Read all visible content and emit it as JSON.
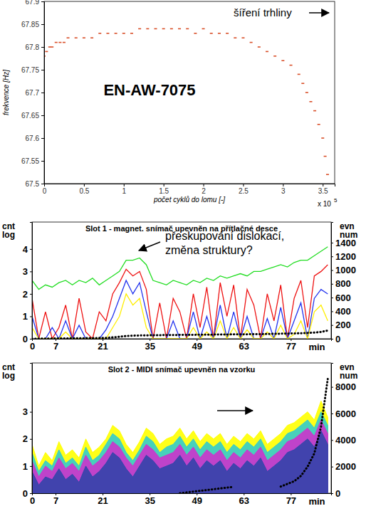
{
  "chart_data": [
    {
      "type": "scatter",
      "title": "EN-AW-7075",
      "annotation": "šíření trhliny",
      "x_label": "počet cyklů do lomu [-]",
      "y_label": "frekvence [Hz]",
      "x_multiplier": {
        "base": "x 10",
        "exponent": "5"
      },
      "x": [
        0,
        0.03,
        0.07,
        0.1,
        0.15,
        0.2,
        0.25,
        0.3,
        0.4,
        0.5,
        0.6,
        0.7,
        0.8,
        0.9,
        1.0,
        1.1,
        1.2,
        1.3,
        1.4,
        1.5,
        1.6,
        1.7,
        1.8,
        1.9,
        2.0,
        2.1,
        2.2,
        2.3,
        2.4,
        2.5,
        2.6,
        2.7,
        2.8,
        2.9,
        3.0,
        3.1,
        3.2,
        3.25,
        3.3,
        3.35,
        3.4,
        3.45,
        3.5,
        3.53,
        3.56
      ],
      "values": [
        67.78,
        67.79,
        67.8,
        67.8,
        67.81,
        67.81,
        67.81,
        67.82,
        67.82,
        67.82,
        67.82,
        67.83,
        67.83,
        67.83,
        67.83,
        67.83,
        67.84,
        67.84,
        67.84,
        67.84,
        67.84,
        67.84,
        67.84,
        67.83,
        67.84,
        67.83,
        67.83,
        67.83,
        67.82,
        67.82,
        67.81,
        67.8,
        67.79,
        67.78,
        67.77,
        67.76,
        67.74,
        67.72,
        67.7,
        67.68,
        67.66,
        67.63,
        67.6,
        67.56,
        67.52
      ],
      "color": "#d9502a",
      "marker": "dash",
      "xlim": [
        0,
        3.65
      ],
      "xticks": [
        0,
        0.5,
        1,
        1.5,
        2,
        2.5,
        3,
        3.5
      ],
      "ylim": [
        67.5,
        67.9
      ],
      "yticks": [
        67.5,
        67.55,
        67.6,
        67.65,
        67.7,
        67.75,
        67.8,
        67.85,
        67.9
      ]
    },
    {
      "type": "line",
      "title": "Slot 1 - magnet. snímač upevněn na přítlačné desce",
      "annotation": [
        "přeskupování dislokací,",
        "změna struktury?"
      ],
      "x_label": "min",
      "y_label": "cnt log",
      "y2_label": "evn num",
      "x": [
        0,
        2,
        4,
        6,
        8,
        10,
        12,
        14,
        16,
        18,
        20,
        22,
        24,
        26,
        28,
        30,
        32,
        34,
        36,
        38,
        40,
        42,
        44,
        46,
        48,
        50,
        52,
        54,
        56,
        58,
        60,
        62,
        64,
        66,
        68,
        70,
        72,
        74,
        76,
        78,
        80,
        82,
        84,
        86,
        88
      ],
      "xlim": [
        0,
        89
      ],
      "xticks": [
        0,
        7,
        21,
        35,
        49,
        63,
        77
      ],
      "ylim": [
        0,
        5.2
      ],
      "yticks": [
        0,
        1,
        2,
        3,
        4
      ],
      "y2lim": [
        0,
        1700
      ],
      "y2ticks": [
        0,
        200,
        400,
        600,
        800,
        1000,
        1200,
        1400
      ],
      "series": [
        {
          "color": "#22dd22",
          "values": [
            2.6,
            2.2,
            2.4,
            2.3,
            2.5,
            2.6,
            2.4,
            2.6,
            2.5,
            2.7,
            2.4,
            2.6,
            2.8,
            3.0,
            3.5,
            3.5,
            3.6,
            3.3,
            2.6,
            2.5,
            2.4,
            2.6,
            2.5,
            2.4,
            2.6,
            2.5,
            2.7,
            2.6,
            2.8,
            2.7,
            2.8,
            2.9,
            2.8,
            3.0,
            3.0,
            3.1,
            3.2,
            3.3,
            3.2,
            3.4,
            3.5,
            3.5,
            3.7,
            3.9,
            4.1
          ]
        },
        {
          "color": "#ee1111",
          "values": [
            1.8,
            0,
            1.2,
            0,
            0.5,
            1.5,
            0,
            1.8,
            0.3,
            0,
            1.2,
            0.8,
            2.0,
            2.5,
            3.1,
            2.8,
            3.0,
            2.2,
            0,
            1.6,
            0,
            1.8,
            1.2,
            0,
            2.0,
            0.5,
            2.3,
            0,
            2.5,
            1.0,
            2.4,
            0,
            2.2,
            1.5,
            0,
            2.0,
            0.8,
            2.4,
            0,
            1.8,
            2.6,
            0.5,
            2.8,
            3.0,
            3.3
          ]
        },
        {
          "color": "#2233ee",
          "values": [
            1.0,
            0,
            0,
            0.5,
            0,
            0.8,
            0,
            0.6,
            0,
            0,
            0,
            0.4,
            1.0,
            1.8,
            2.6,
            2.0,
            2.5,
            1.2,
            0,
            0,
            0,
            0.8,
            0,
            0,
            1.2,
            0,
            1.0,
            0,
            1.5,
            0,
            1.2,
            0,
            1.0,
            0,
            0,
            0.9,
            0,
            1.4,
            0,
            0.8,
            1.6,
            0,
            1.8,
            2.2,
            2.0
          ]
        },
        {
          "color": "#ffee00",
          "values": [
            0.5,
            0,
            0,
            0,
            0,
            0.3,
            0,
            0,
            0,
            0,
            0,
            0,
            0.5,
            1.0,
            2.0,
            1.5,
            1.8,
            0.5,
            0,
            0,
            0,
            0,
            0,
            0,
            0.5,
            0,
            0.3,
            0,
            0.8,
            0,
            0.5,
            0,
            0.4,
            0,
            0,
            0.3,
            0,
            0.6,
            0,
            0.2,
            0.8,
            0,
            1.2,
            1.5,
            0.8
          ]
        },
        {
          "color": "#000000",
          "axis": "y2",
          "line_style": "dotted",
          "values": [
            0,
            2,
            3,
            4,
            5,
            6,
            7,
            8,
            9,
            10,
            12,
            14,
            20,
            30,
            40,
            45,
            48,
            50,
            52,
            53,
            54,
            55,
            56,
            57,
            58,
            59,
            60,
            61,
            62,
            63,
            64,
            65,
            66,
            67,
            68,
            70,
            72,
            74,
            76,
            78,
            80,
            85,
            90,
            100,
            120
          ]
        }
      ]
    },
    {
      "type": "area",
      "title": "Slot 2 - MIDI snímač upevněn na vzorku",
      "x_label": "min",
      "y_label": "cnt log",
      "y2_label": "evn num",
      "x": [
        0,
        2,
        4,
        6,
        8,
        10,
        12,
        14,
        16,
        18,
        20,
        22,
        24,
        26,
        28,
        30,
        32,
        34,
        36,
        38,
        40,
        42,
        44,
        46,
        48,
        50,
        52,
        54,
        56,
        58,
        60,
        62,
        64,
        66,
        68,
        70,
        72,
        74,
        76,
        78,
        80,
        82,
        84,
        86,
        88
      ],
      "xlim": [
        0,
        89
      ],
      "xticks": [
        0,
        7,
        21,
        35,
        49,
        63,
        77
      ],
      "ylim": [
        0,
        4.8
      ],
      "yticks": [
        0,
        1,
        2,
        3
      ],
      "y2lim": [
        0,
        9800
      ],
      "y2ticks": [
        0,
        2000,
        4000,
        6000,
        8000
      ],
      "series": [
        {
          "color": "#ffff00",
          "values": [
            1.8,
            1.0,
            1.5,
            1.2,
            1.9,
            1.4,
            1.6,
            1.3,
            2.0,
            1.5,
            1.7,
            2.0,
            2.5,
            2.3,
            1.8,
            1.5,
            1.9,
            2.4,
            2.2,
            1.8,
            2.0,
            2.1,
            2.4,
            2.0,
            2.3,
            1.9,
            2.2,
            2.0,
            2.2,
            1.8,
            2.1,
            1.9,
            2.2,
            2.0,
            2.3,
            1.8,
            2.0,
            2.2,
            2.5,
            2.6,
            2.8,
            3.0,
            2.7,
            3.4,
            2.8
          ]
        },
        {
          "color": "#33cccc",
          "values": [
            1.5,
            0.8,
            1.2,
            1.0,
            1.6,
            1.1,
            1.3,
            1.0,
            1.7,
            1.2,
            1.4,
            1.8,
            2.2,
            2.0,
            1.5,
            1.2,
            1.6,
            2.1,
            1.9,
            1.5,
            1.7,
            1.8,
            2.1,
            1.7,
            2.0,
            1.6,
            1.9,
            1.7,
            1.9,
            1.5,
            1.8,
            1.6,
            1.9,
            1.7,
            2.0,
            1.5,
            1.7,
            1.9,
            2.2,
            2.3,
            2.5,
            2.7,
            2.4,
            3.0,
            2.5
          ]
        },
        {
          "color": "#cc33cc",
          "values": [
            1.2,
            0.6,
            1.0,
            0.8,
            1.3,
            0.9,
            1.1,
            0.8,
            1.4,
            1.0,
            1.2,
            1.5,
            1.9,
            1.7,
            1.3,
            1.0,
            1.4,
            1.8,
            1.6,
            1.3,
            1.4,
            1.5,
            1.8,
            1.4,
            1.7,
            1.3,
            1.6,
            1.4,
            1.6,
            1.2,
            1.5,
            1.3,
            1.6,
            1.4,
            1.7,
            1.2,
            1.4,
            1.6,
            1.9,
            2.0,
            2.2,
            2.4,
            2.1,
            2.7,
            2.2
          ]
        },
        {
          "color": "#3344aa",
          "values": [
            0.8,
            0.3,
            0.6,
            0.5,
            0.9,
            0.5,
            0.7,
            0.4,
            1.0,
            0.6,
            0.8,
            1.1,
            1.5,
            1.3,
            0.9,
            0.6,
            1.0,
            1.4,
            1.2,
            0.9,
            1.0,
            1.1,
            1.4,
            1.0,
            1.3,
            0.9,
            1.2,
            1.0,
            1.2,
            0.8,
            1.1,
            0.9,
            1.2,
            1.0,
            1.3,
            0.8,
            1.0,
            1.2,
            1.5,
            1.6,
            1.8,
            2.0,
            1.7,
            2.3,
            1.8
          ]
        },
        {
          "color": "#000000",
          "axis": "y2",
          "type": "line",
          "line_style": "dotted",
          "values": [
            null,
            null,
            null,
            null,
            null,
            null,
            null,
            null,
            null,
            null,
            null,
            null,
            null,
            null,
            null,
            null,
            null,
            null,
            null,
            null,
            null,
            null,
            0,
            60,
            120,
            180,
            240,
            300,
            360,
            420,
            480,
            null,
            null,
            null,
            null,
            null,
            null,
            500,
            700,
            900,
            1300,
            2000,
            3000,
            5000,
            8600
          ]
        }
      ]
    }
  ]
}
